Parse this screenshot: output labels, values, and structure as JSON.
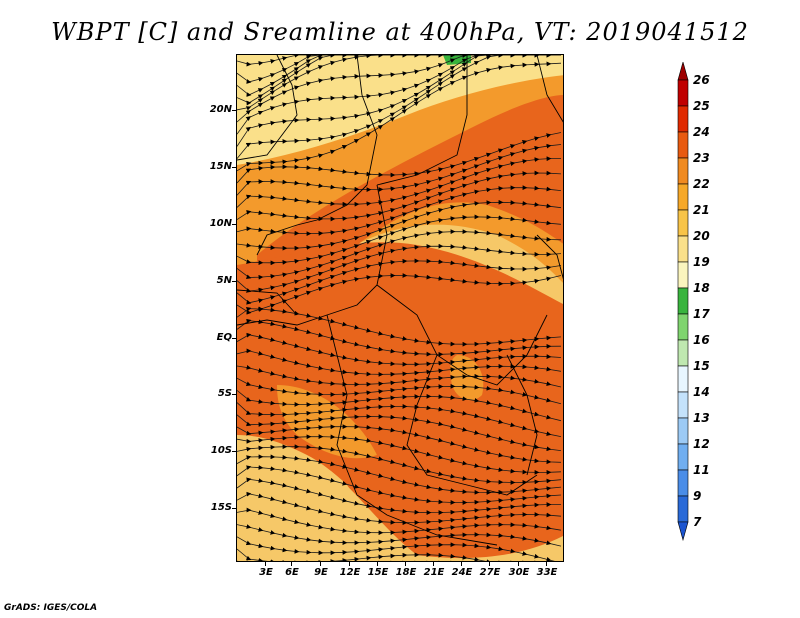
{
  "title": "WBPT [C] and Sreamline at 400hPa, VT: 2019041512",
  "credit": "GrADS: IGES/COLA",
  "map": {
    "latitude_labels": [
      "20N",
      "15N",
      "10N",
      "5N",
      "EQ",
      "5S",
      "10S",
      "15S"
    ],
    "longitude_labels": [
      "3E",
      "6E",
      "9E",
      "12E",
      "15E",
      "18E",
      "21E",
      "24E",
      "27E",
      "30E",
      "33E"
    ],
    "field": "Wet-bulb potential temperature with streamlines",
    "dominant_colors": {
      "warm_core": "#e8651c",
      "mid": "#f39a2c",
      "light": "#f6c868",
      "pale": "#faeda0",
      "green_patch": "#38b33c"
    }
  },
  "colorbar": {
    "labels": [
      "26",
      "25",
      "24",
      "23",
      "22",
      "21",
      "20",
      "19",
      "18",
      "17",
      "16",
      "15",
      "14",
      "13",
      "12",
      "11",
      "9",
      "7"
    ],
    "colors": [
      "#9e0000",
      "#c00000",
      "#e02a00",
      "#e85a10",
      "#f08a20",
      "#f6a828",
      "#f8c448",
      "#fae08a",
      "#fbf5be",
      "#39b43e",
      "#7fd46e",
      "#bfe8b0",
      "#e8f6ff",
      "#c4e2fb",
      "#9ccaf5",
      "#70aef0",
      "#4a8de8",
      "#2a6ad8",
      "#1c55d0"
    ]
  }
}
